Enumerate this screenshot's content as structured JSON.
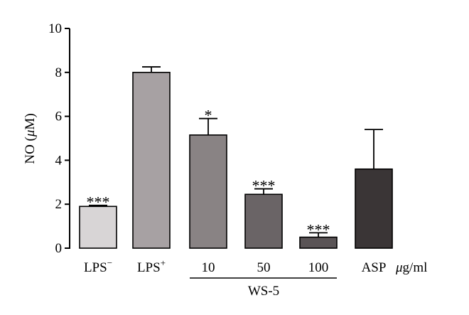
{
  "chart_data": {
    "type": "bar",
    "ylabel": "NO (",
    "ylabel_mu": "μ",
    "ylabel_unit": "M)",
    "ylim": [
      0,
      10
    ],
    "yticks": [
      0,
      2,
      4,
      6,
      8,
      10
    ],
    "categories": [
      "LPS",
      "LPS",
      "10",
      "50",
      "100",
      "ASP"
    ],
    "category_superscripts": [
      "−",
      "+",
      "",
      "",
      "",
      ""
    ],
    "values": [
      1.9,
      8.0,
      5.15,
      2.45,
      0.5,
      3.6
    ],
    "errors": [
      0.05,
      0.25,
      0.75,
      0.25,
      0.2,
      1.8
    ],
    "significance": [
      "***",
      "",
      "*",
      "***",
      "***",
      ""
    ],
    "colors": [
      "#d8d5d6",
      "#a7a1a3",
      "#898384",
      "#6a6466",
      "#5a5456",
      "#3a3536"
    ],
    "group_label": "WS-5",
    "unit_label_mu": "μ",
    "unit_label": "g/ml"
  }
}
